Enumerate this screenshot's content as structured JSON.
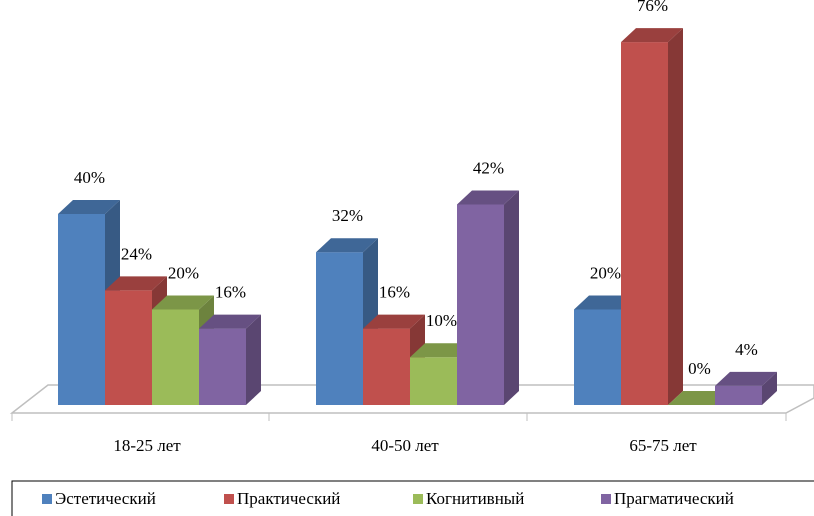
{
  "chart_data": {
    "type": "bar3d",
    "categories": [
      "18-25 лет",
      "40-50 лет",
      "65-75 лет"
    ],
    "series": [
      {
        "name": "Эстетический",
        "color": "#4f81bd",
        "values": [
          40,
          32,
          20
        ],
        "value_labels": [
          "40%",
          "32%",
          "20%"
        ]
      },
      {
        "name": "Практический",
        "color": "#c0504d",
        "values": [
          24,
          16,
          76
        ],
        "value_labels": [
          "24%",
          "16%",
          "76%"
        ]
      },
      {
        "name": "Когнитивный",
        "color": "#9bbb59",
        "values": [
          20,
          10,
          0
        ],
        "value_labels": [
          "20%",
          "10%",
          "0%"
        ]
      },
      {
        "name": "Прагматический",
        "color": "#8064a2",
        "values": [
          16,
          42,
          4
        ],
        "value_labels": [
          "16%",
          "42%",
          "4%"
        ]
      }
    ],
    "ylim": [
      0,
      80
    ],
    "legend": "bottom"
  }
}
